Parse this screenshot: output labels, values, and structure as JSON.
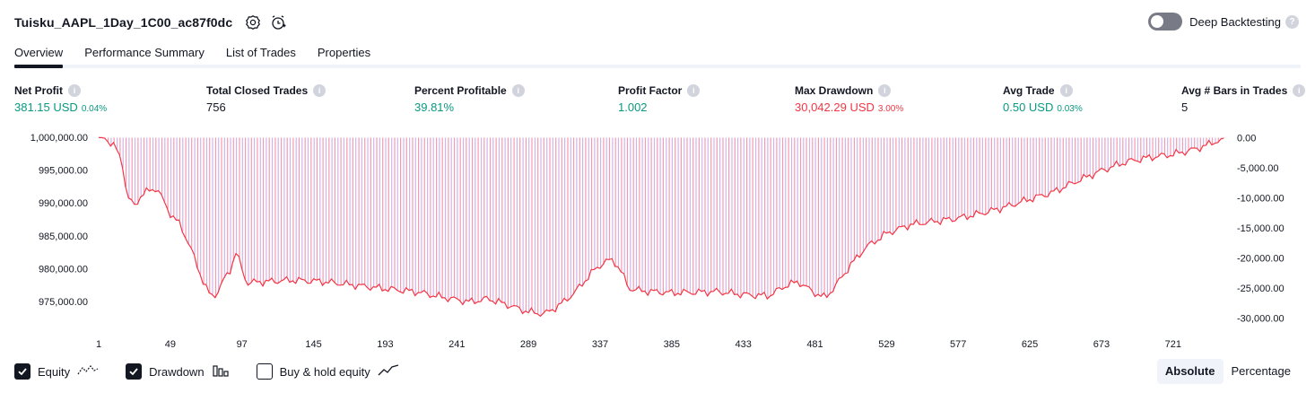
{
  "header": {
    "title": "Tuisku_AAPL_1Day_1C00_ac87f0dc",
    "settings_icon": "gear-icon",
    "alert_icon": "alarm-add-icon"
  },
  "deep_backtesting": {
    "label": "Deep Backtesting",
    "enabled": false,
    "help_icon": "question-icon",
    "help_glyph": "?"
  },
  "tabs": [
    {
      "label": "Overview",
      "active": true
    },
    {
      "label": "Performance Summary",
      "active": false
    },
    {
      "label": "List of Trades",
      "active": false
    },
    {
      "label": "Properties",
      "active": false
    }
  ],
  "metrics": [
    {
      "label": "Net Profit",
      "value": "381.15 USD",
      "pct": "0.04%",
      "color": "#089981"
    },
    {
      "label": "Total Closed Trades",
      "value": "756",
      "pct": "",
      "color": "#131722"
    },
    {
      "label": "Percent Profitable",
      "value": "39.81%",
      "pct": "",
      "color": "#089981"
    },
    {
      "label": "Profit Factor",
      "value": "1.002",
      "pct": "",
      "color": "#089981"
    },
    {
      "label": "Max Drawdown",
      "value": "30,042.29 USD",
      "pct": "3.00%",
      "color": "#f23645"
    },
    {
      "label": "Avg Trade",
      "value": "0.50 USD",
      "pct": "0.03%",
      "color": "#089981"
    },
    {
      "label": "Avg # Bars in Trades",
      "value": "5",
      "pct": "",
      "color": "#131722"
    }
  ],
  "info_glyph": "i",
  "chart_data": {
    "type": "area",
    "series": [
      {
        "name": "Equity",
        "color": "#9c7fd8"
      },
      {
        "name": "Drawdown",
        "color": "#f23645"
      }
    ],
    "x_ticks": [
      "1",
      "49",
      "97",
      "145",
      "193",
      "241",
      "289",
      "337",
      "385",
      "433",
      "481",
      "529",
      "577",
      "625",
      "673",
      "721"
    ],
    "x_range": [
      1,
      756
    ],
    "left_axis_ticks": [
      "1,000,000.00",
      "995,000.00",
      "990,000.00",
      "985,000.00",
      "980,000.00",
      "975,000.00"
    ],
    "right_axis_ticks": [
      "0.00",
      "-5,000.00",
      "-10,000.00",
      "-15,000.00",
      "-20,000.00",
      "-25,000.00",
      "-30,000.00"
    ],
    "equity_ylim": [
      972000,
      1000400
    ],
    "drawdown_ylim": [
      -30500,
      500
    ],
    "drawdown_profile": [
      [
        1,
        0
      ],
      [
        5,
        0
      ],
      [
        12,
        -1500
      ],
      [
        17,
        -4500
      ],
      [
        20,
        -9800
      ],
      [
        25,
        -11500
      ],
      [
        30,
        -9500
      ],
      [
        40,
        -8500
      ],
      [
        48,
        -12500
      ],
      [
        55,
        -14500
      ],
      [
        62,
        -18000
      ],
      [
        67,
        -21500
      ],
      [
        72,
        -24500
      ],
      [
        76,
        -26500
      ],
      [
        80,
        -26000
      ],
      [
        84,
        -24000
      ],
      [
        89,
        -22000
      ],
      [
        93,
        -19000
      ],
      [
        96,
        -21000
      ],
      [
        100,
        -24000
      ],
      [
        110,
        -23800
      ],
      [
        130,
        -23500
      ],
      [
        150,
        -23800
      ],
      [
        170,
        -24500
      ],
      [
        190,
        -25200
      ],
      [
        215,
        -25800
      ],
      [
        230,
        -26500
      ],
      [
        250,
        -27200
      ],
      [
        262,
        -26600
      ],
      [
        275,
        -27600
      ],
      [
        289,
        -28800
      ],
      [
        300,
        -29200
      ],
      [
        310,
        -27800
      ],
      [
        320,
        -25800
      ],
      [
        332,
        -22400
      ],
      [
        340,
        -20800
      ],
      [
        346,
        -20500
      ],
      [
        352,
        -22800
      ],
      [
        356,
        -25200
      ],
      [
        365,
        -25600
      ],
      [
        385,
        -25800
      ],
      [
        400,
        -25600
      ],
      [
        415,
        -25400
      ],
      [
        433,
        -25900
      ],
      [
        450,
        -26200
      ],
      [
        462,
        -24500
      ],
      [
        470,
        -24000
      ],
      [
        480,
        -25800
      ],
      [
        488,
        -26800
      ],
      [
        496,
        -24400
      ],
      [
        505,
        -21300
      ],
      [
        515,
        -18400
      ],
      [
        529,
        -16000
      ],
      [
        545,
        -14400
      ],
      [
        560,
        -13800
      ],
      [
        577,
        -13200
      ],
      [
        595,
        -12300
      ],
      [
        610,
        -11400
      ],
      [
        625,
        -10300
      ],
      [
        640,
        -9300
      ],
      [
        655,
        -7600
      ],
      [
        673,
        -5600
      ],
      [
        690,
        -4000
      ],
      [
        705,
        -3200
      ],
      [
        721,
        -2600
      ],
      [
        735,
        -1800
      ],
      [
        745,
        -1000
      ],
      [
        752,
        -300
      ],
      [
        756,
        0
      ]
    ]
  },
  "legend": [
    {
      "label": "Equity",
      "checked": true,
      "icon": "equity-line-icon"
    },
    {
      "label": "Drawdown",
      "checked": true,
      "icon": "drawdown-bars-icon"
    },
    {
      "label": "Buy & hold equity",
      "checked": false,
      "icon": "buy-hold-line-icon"
    }
  ],
  "mode": {
    "absolute_label": "Absolute",
    "percentage_label": "Percentage",
    "active": "Absolute"
  }
}
